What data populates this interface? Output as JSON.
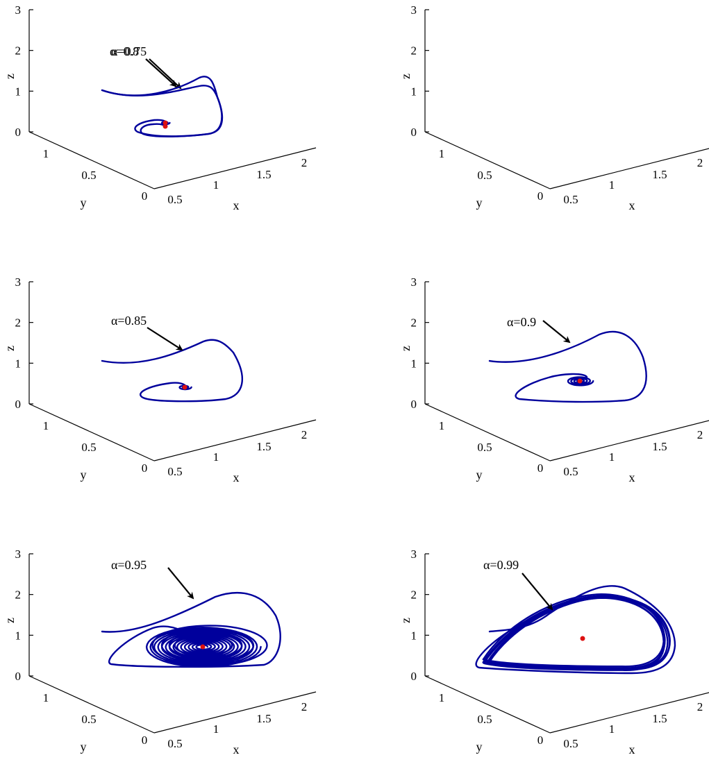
{
  "figure": {
    "background": "#ffffff",
    "trajectory_color": "#00009c",
    "equilibrium_color": "#dd1111",
    "arrow_color": "#000000"
  },
  "chart_data": [
    {
      "type": "line",
      "dims": 3,
      "annotation": "α=0.75",
      "alpha": 0.75,
      "xlabel": "x",
      "ylabel": "y",
      "zlabel": "z",
      "x_ticks": [
        "0.5",
        "1",
        "1.5",
        "2"
      ],
      "y_ticks": [
        "0",
        "0.5",
        "1"
      ],
      "z_ticks": [
        "0",
        "1",
        "2",
        "3"
      ],
      "xlim": [
        0.5,
        2.2
      ],
      "ylim": [
        0,
        1.2
      ],
      "zlim": [
        0,
        3
      ],
      "grid": false,
      "series": [
        {
          "kind": "trajectory",
          "dynamics": "spiral-converging",
          "points": [
            [
              0.6,
              1.2,
              1.05
            ],
            [
              1.3,
              0.9,
              1.3
            ],
            [
              2.0,
              0.5,
              1.15
            ],
            [
              1.6,
              0.2,
              0.3
            ],
            [
              1.0,
              0.3,
              0.1
            ],
            [
              0.9,
              0.45,
              0.2
            ]
          ]
        },
        {
          "kind": "equilibrium",
          "point": [
            1.1,
            0.45,
            0.2
          ]
        }
      ]
    },
    {
      "type": "line",
      "dims": 3,
      "annotation": "α=0.8",
      "alpha": 0.8,
      "xlabel": "x",
      "ylabel": "y",
      "zlabel": "z",
      "x_ticks": [
        "0.5",
        "1",
        "1.5",
        "2"
      ],
      "y_ticks": [
        "0",
        "0.5",
        "1"
      ],
      "z_ticks": [
        "0",
        "1",
        "2",
        "3"
      ],
      "xlim": [
        0.5,
        2.2
      ],
      "ylim": [
        0,
        1.2
      ],
      "zlim": [
        0,
        3
      ],
      "grid": false,
      "series": [
        {
          "kind": "trajectory",
          "dynamics": "spiral-converging",
          "points": [
            [
              0.6,
              1.2,
              1.05
            ],
            [
              1.3,
              0.9,
              1.3
            ],
            [
              2.0,
              0.5,
              1.15
            ],
            [
              1.6,
              0.2,
              0.3
            ],
            [
              1.0,
              0.3,
              0.1
            ],
            [
              1.0,
              0.5,
              0.3
            ]
          ]
        },
        {
          "kind": "equilibrium",
          "point": [
            1.1,
            0.45,
            0.3
          ]
        }
      ]
    },
    {
      "type": "line",
      "dims": 3,
      "annotation": "α=0.85",
      "alpha": 0.85,
      "xlabel": "x",
      "ylabel": "y",
      "zlabel": "z",
      "x_ticks": [
        "0.5",
        "1",
        "1.5",
        "2"
      ],
      "y_ticks": [
        "0",
        "0.5",
        "1"
      ],
      "z_ticks": [
        "0",
        "1",
        "2",
        "3"
      ],
      "xlim": [
        0.5,
        2.2
      ],
      "ylim": [
        0,
        1.2
      ],
      "zlim": [
        0,
        3
      ],
      "grid": false,
      "series": [
        {
          "kind": "trajectory",
          "dynamics": "spiral-converging",
          "points": [
            [
              0.6,
              1.2,
              1.05
            ],
            [
              1.3,
              0.9,
              1.5
            ],
            [
              2.0,
              0.5,
              1.3
            ],
            [
              1.6,
              0.2,
              0.4
            ],
            [
              0.9,
              0.3,
              0.1
            ],
            [
              1.0,
              0.5,
              0.45
            ]
          ]
        },
        {
          "kind": "equilibrium",
          "point": [
            1.1,
            0.45,
            0.45
          ]
        }
      ]
    },
    {
      "type": "line",
      "dims": 3,
      "annotation": "α=0.9",
      "alpha": 0.9,
      "xlabel": "x",
      "ylabel": "y",
      "zlabel": "z",
      "x_ticks": [
        "0.5",
        "1",
        "1.5",
        "2"
      ],
      "y_ticks": [
        "0",
        "0.5",
        "1"
      ],
      "z_ticks": [
        "0",
        "1",
        "2",
        "3"
      ],
      "xlim": [
        0.5,
        2.2
      ],
      "ylim": [
        0,
        1.2
      ],
      "zlim": [
        0,
        3
      ],
      "grid": false,
      "series": [
        {
          "kind": "trajectory",
          "dynamics": "spiral-converging",
          "points": [
            [
              0.6,
              1.2,
              1.05
            ],
            [
              1.3,
              0.9,
              1.7
            ],
            [
              2.1,
              0.5,
              1.4
            ],
            [
              1.7,
              0.2,
              0.3
            ],
            [
              0.8,
              0.3,
              0.1
            ],
            [
              1.1,
              0.5,
              0.55
            ]
          ]
        },
        {
          "kind": "equilibrium",
          "point": [
            1.1,
            0.45,
            0.55
          ]
        }
      ]
    },
    {
      "type": "line",
      "dims": 3,
      "annotation": "α=0.95",
      "alpha": 0.95,
      "xlabel": "x",
      "ylabel": "y",
      "zlabel": "z",
      "x_ticks": [
        "0.5",
        "1",
        "1.5",
        "2"
      ],
      "y_ticks": [
        "0",
        "0.5",
        "1"
      ],
      "z_ticks": [
        "0",
        "1",
        "2",
        "3"
      ],
      "xlim": [
        0.5,
        2.2
      ],
      "ylim": [
        0,
        1.2
      ],
      "zlim": [
        0,
        3
      ],
      "grid": false,
      "series": [
        {
          "kind": "trajectory",
          "dynamics": "spiral-converging",
          "points": [
            [
              0.6,
              1.2,
              1.05
            ],
            [
              1.3,
              0.9,
              2.0
            ],
            [
              2.1,
              0.5,
              1.6
            ],
            [
              1.8,
              0.2,
              0.3
            ],
            [
              0.7,
              0.3,
              0.25
            ],
            [
              1.1,
              0.5,
              0.65
            ]
          ]
        },
        {
          "kind": "equilibrium",
          "point": [
            1.1,
            0.45,
            0.65
          ]
        }
      ]
    },
    {
      "type": "line",
      "dims": 3,
      "annotation": "α=0.99",
      "alpha": 0.99,
      "xlabel": "x",
      "ylabel": "y",
      "zlabel": "z",
      "x_ticks": [
        "0.5",
        "1",
        "1.5",
        "2"
      ],
      "y_ticks": [
        "0",
        "0.5",
        "1"
      ],
      "z_ticks": [
        "0",
        "1",
        "2",
        "3"
      ],
      "xlim": [
        0.5,
        2.2
      ],
      "ylim": [
        0,
        1.2
      ],
      "zlim": [
        0,
        3
      ],
      "grid": false,
      "series": [
        {
          "kind": "trajectory",
          "dynamics": "limit-cycle",
          "points": [
            [
              0.6,
              1.2,
              1.05
            ],
            [
              1.4,
              0.9,
              2.2
            ],
            [
              2.1,
              0.5,
              1.6
            ],
            [
              1.8,
              0.2,
              0.3
            ],
            [
              0.6,
              0.3,
              0.3
            ],
            [
              1.4,
              0.9,
              2.0
            ]
          ]
        },
        {
          "kind": "equilibrium",
          "point": [
            1.2,
            0.45,
            0.85
          ]
        }
      ]
    }
  ]
}
